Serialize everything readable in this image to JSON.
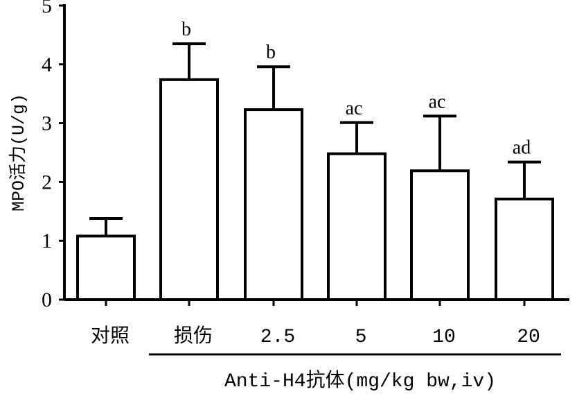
{
  "chart_data": {
    "type": "bar",
    "categories": [
      "对照",
      "损伤",
      "2.5",
      "5",
      "10",
      "20"
    ],
    "values": [
      1.08,
      3.74,
      3.23,
      2.48,
      2.19,
      1.71
    ],
    "error_upper": [
      1.38,
      4.35,
      3.96,
      3.01,
      3.12,
      2.34
    ],
    "significance_labels": [
      "",
      "b",
      "b",
      "ac",
      "ac",
      "ad"
    ],
    "ylabel": "MPO活力(U/g)",
    "xlabel": "",
    "group_label": "Anti-H4抗体(mg/kg bw,iv)",
    "ylim": [
      0,
      5
    ],
    "yticks": [
      "0",
      "1",
      "2",
      "3",
      "4",
      "5"
    ],
    "grid": false,
    "colors": {
      "bar_fill": "#ffffff",
      "stroke": "#000000"
    }
  }
}
